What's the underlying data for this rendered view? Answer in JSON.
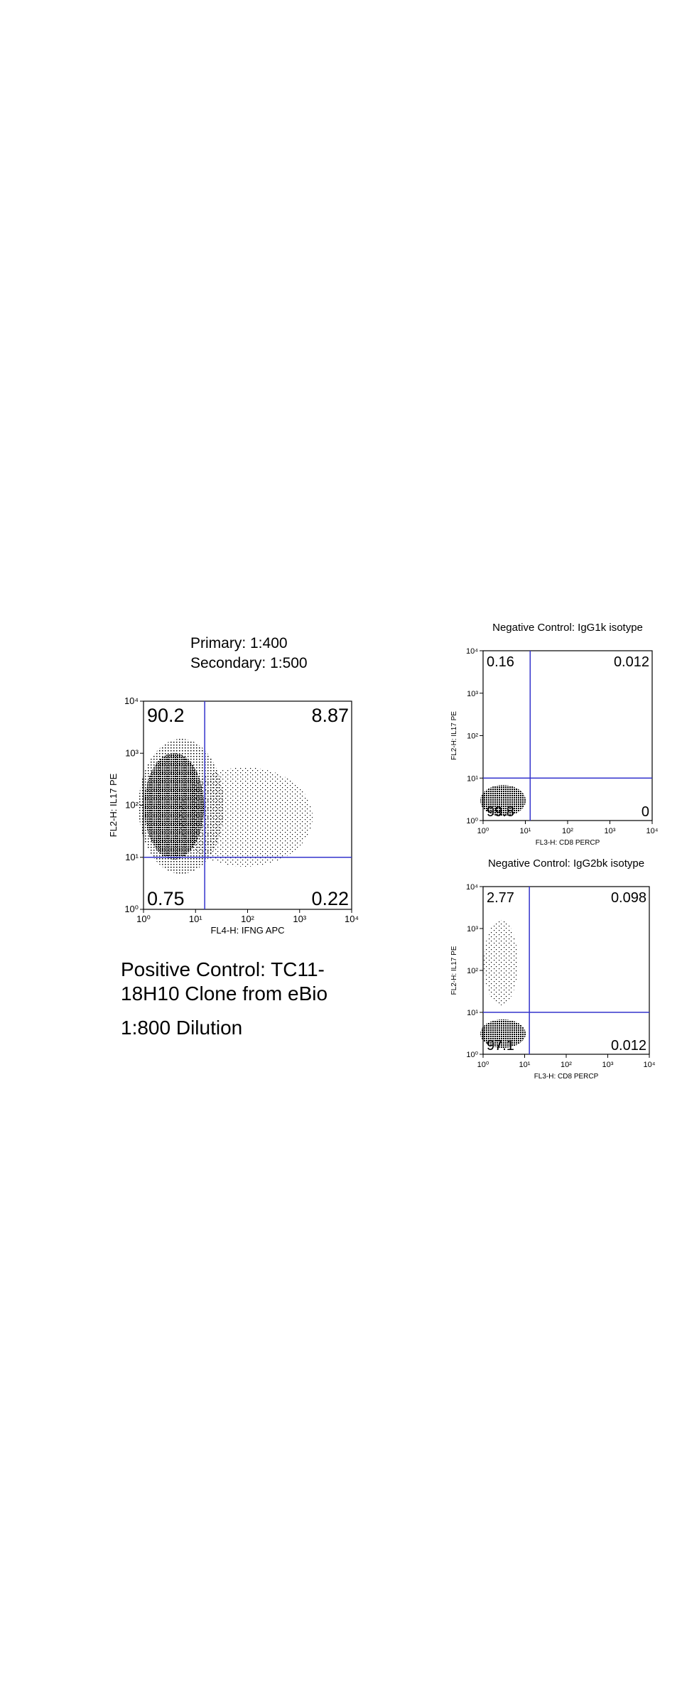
{
  "chart_data": [
    {
      "type": "scatter",
      "annotations": [
        "Primary:  1:400",
        "Secondary:  1:500"
      ],
      "caption": "Positive Control: TC11-18H10 Clone from eBio",
      "dilution": "1:800 Dilution",
      "xlabel": "FL4-H: IFNG APC",
      "ylabel": "FL2-H: IL17 PE",
      "xlim": [
        1,
        10000
      ],
      "ylim": [
        1,
        10000
      ],
      "log_scale": true,
      "xticks": [
        {
          "value": 1,
          "label": "10⁰"
        },
        {
          "value": 10,
          "label": "10¹"
        },
        {
          "value": 100,
          "label": "10²"
        },
        {
          "value": 1000,
          "label": "10³"
        },
        {
          "value": 10000,
          "label": "10⁴"
        }
      ],
      "yticks": [
        {
          "value": 1,
          "label": "10⁰"
        },
        {
          "value": 10,
          "label": "10¹"
        },
        {
          "value": 100,
          "label": "10²"
        },
        {
          "value": 1000,
          "label": "10³"
        },
        {
          "value": 10000,
          "label": "10⁴"
        }
      ],
      "gates": {
        "x": 15,
        "y": 10
      },
      "gate_color": "#3333cc",
      "quadrant_values": [
        90.2,
        8.87,
        0.75,
        0.22
      ]
    },
    {
      "type": "scatter",
      "title": "Negative Control: IgG1k isotype",
      "xlabel": "FL3-H: CD8 PERCP",
      "ylabel": "FL2-H: IL17 PE",
      "xlim": [
        1,
        10000
      ],
      "ylim": [
        1,
        10000
      ],
      "log_scale": true,
      "xticks": [
        {
          "value": 1,
          "label": "10⁰"
        },
        {
          "value": 10,
          "label": "10¹"
        },
        {
          "value": 100,
          "label": "10²"
        },
        {
          "value": 1000,
          "label": "10³"
        },
        {
          "value": 10000,
          "label": "10⁴"
        }
      ],
      "yticks": [
        {
          "value": 1,
          "label": "10⁰"
        },
        {
          "value": 10,
          "label": "10¹"
        },
        {
          "value": 100,
          "label": "10²"
        },
        {
          "value": 1000,
          "label": "10³"
        },
        {
          "value": 10000,
          "label": "10⁴"
        }
      ],
      "gates": {
        "x": 13,
        "y": 10
      },
      "gate_color": "#3333cc",
      "quadrant_values": [
        0.16,
        0.012,
        99.8,
        0
      ]
    },
    {
      "type": "scatter",
      "title": "Negative Control: IgG2bk isotype",
      "xlabel": "FL3-H: CD8 PERCP",
      "ylabel": "FL2-H: IL17 PE",
      "xlim": [
        1,
        10000
      ],
      "ylim": [
        1,
        10000
      ],
      "log_scale": true,
      "xticks": [
        {
          "value": 1,
          "label": "10⁰"
        },
        {
          "value": 10,
          "label": "10¹"
        },
        {
          "value": 100,
          "label": "10²"
        },
        {
          "value": 1000,
          "label": "10³"
        },
        {
          "value": 10000,
          "label": "10⁴"
        }
      ],
      "yticks": [
        {
          "value": 1,
          "label": "10⁰"
        },
        {
          "value": 10,
          "label": "10¹"
        },
        {
          "value": 100,
          "label": "10²"
        },
        {
          "value": 1000,
          "label": "10³"
        },
        {
          "value": 10000,
          "label": "10⁴"
        }
      ],
      "gates": {
        "x": 13,
        "y": 10
      },
      "gate_color": "#3333cc",
      "quadrant_values": [
        2.77,
        0.098,
        97.1,
        0.012
      ]
    }
  ]
}
